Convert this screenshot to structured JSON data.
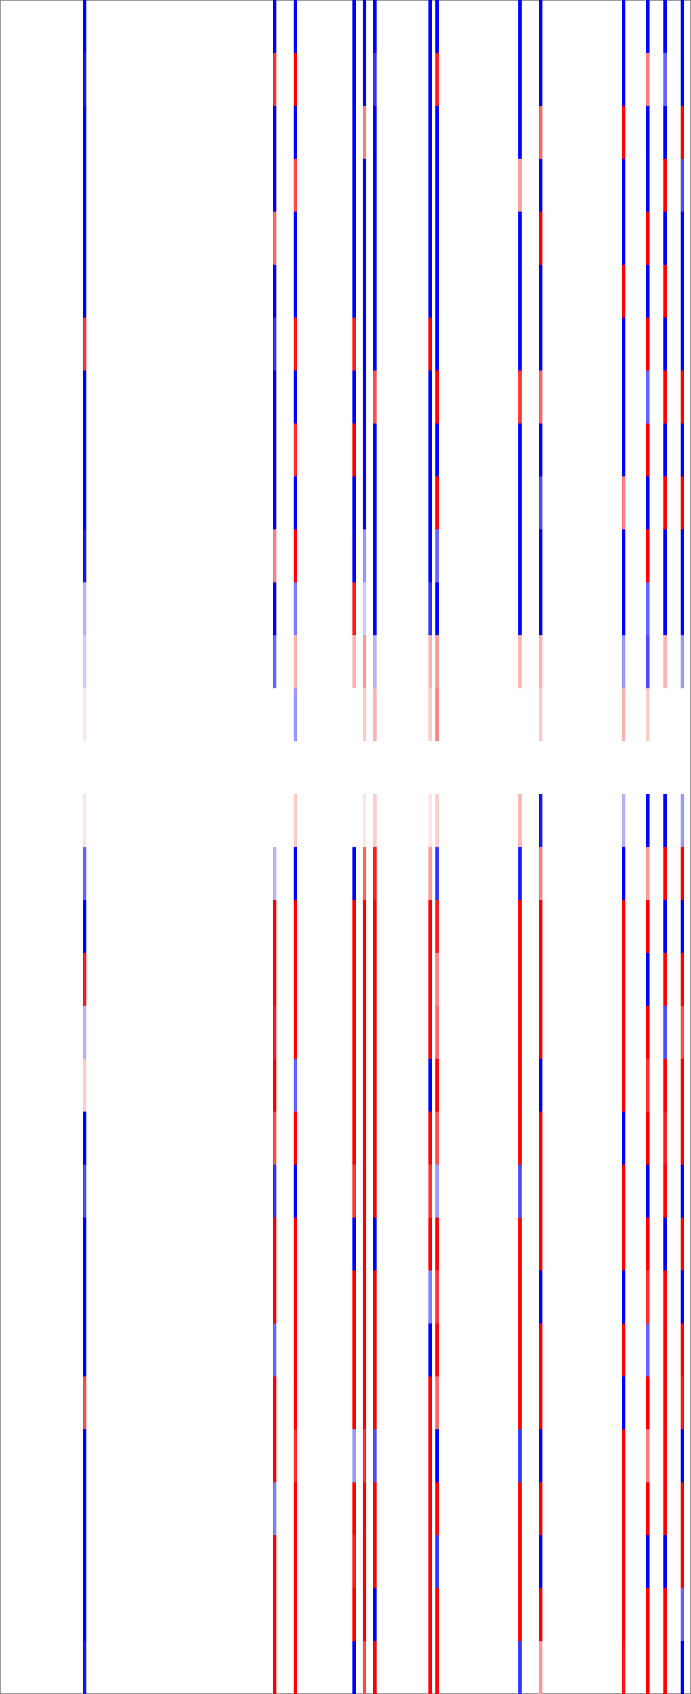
{
  "chart_data": {
    "type": "heatmap",
    "xlim": [
      0,
      200
    ],
    "vlim": [
      -1,
      1
    ],
    "colors": [
      "#0000ff",
      "#ffffff",
      "#ff0000"
    ],
    "columns": [
      {
        "x": 24,
        "values": [
          -1,
          -0.9,
          -1,
          -1,
          -1,
          -1,
          0.8,
          -1,
          -1,
          -1,
          -0.9,
          -0.3,
          -0.2,
          0.1,
          0,
          0.1,
          -0.6,
          -1,
          0.9,
          -0.3,
          0.2,
          -1,
          -0.7,
          -1,
          -1,
          -1,
          0.7,
          -1,
          -1,
          -1,
          -1,
          -0.9
        ]
      },
      {
        "x": 79,
        "values": [
          -1,
          0.8,
          -1,
          -1,
          0.6,
          -1,
          -0.8,
          -1,
          -1,
          -1,
          0.5,
          -1,
          -0.6,
          0,
          0,
          0,
          -0.3,
          1,
          1,
          0.9,
          1,
          0.7,
          -0.8,
          1,
          1,
          -0.6,
          1,
          1,
          -0.5,
          1,
          1,
          1
        ]
      },
      {
        "x": 85,
        "values": [
          -1,
          1,
          -1,
          0.7,
          -1,
          -1,
          0.9,
          -1,
          0.8,
          -1,
          1,
          -0.5,
          0.3,
          -0.4,
          0,
          0.2,
          -1,
          1,
          1,
          1,
          -0.6,
          1,
          -1,
          1,
          1,
          1,
          1,
          0.8,
          1,
          1,
          1,
          1
        ]
      },
      {
        "x": 102,
        "values": [
          -1,
          -1,
          -1,
          -1,
          -1,
          -1,
          0.9,
          -1,
          1,
          -1,
          -1,
          0.9,
          0.3,
          0,
          0,
          0,
          -1,
          1,
          1,
          1,
          1,
          1,
          0.8,
          -1,
          1,
          1,
          1,
          -0.4,
          1,
          0.9,
          1,
          -1
        ]
      },
      {
        "x": 105,
        "values": [
          -1,
          -1,
          0.5,
          -1,
          -1,
          -1,
          -1,
          -1,
          -1,
          -1,
          -0.4,
          -0.2,
          0.4,
          0.2,
          0,
          0.1,
          0.6,
          1,
          1,
          1,
          1,
          1,
          1,
          1,
          1,
          1,
          1,
          0.8,
          1,
          1,
          1,
          0.7
        ]
      },
      {
        "x": 108,
        "values": [
          -1,
          -0.8,
          -1,
          -1,
          -1,
          -1,
          -1,
          0.7,
          -1,
          -1,
          -1,
          -1,
          -0.3,
          0.3,
          0,
          0.2,
          0.9,
          1,
          1,
          1,
          1,
          1,
          1,
          -1,
          1,
          1,
          1,
          -0.7,
          1,
          1,
          -1,
          1
        ]
      },
      {
        "x": 124,
        "values": [
          -1,
          -1,
          -1,
          -1,
          -1,
          -1,
          1,
          -1,
          -1,
          -1,
          -1,
          -0.8,
          0.3,
          0.2,
          0,
          0.1,
          0.4,
          1,
          1,
          1,
          -1,
          1,
          0.8,
          1,
          -0.5,
          -1,
          1,
          1,
          1,
          1,
          1,
          1
        ]
      },
      {
        "x": 126,
        "values": [
          -1,
          0.9,
          -1,
          -1,
          -1,
          -1,
          -1,
          1,
          -1,
          1,
          -0.6,
          -1,
          0.4,
          0.5,
          0,
          0.2,
          -0.8,
          0.9,
          0.5,
          0.6,
          1,
          0.7,
          -0.4,
          1,
          0.8,
          1,
          0.6,
          -1,
          1,
          -0.8,
          1,
          1
        ]
      },
      {
        "x": 150,
        "values": [
          -1,
          -1,
          -1,
          0.4,
          -1,
          -1,
          -1,
          0.8,
          -1,
          -1,
          -1,
          -1,
          0.3,
          0,
          0,
          0.3,
          -0.9,
          1,
          1,
          1,
          1,
          1,
          -0.7,
          1,
          1,
          1,
          1,
          -0.8,
          1,
          1,
          1,
          -0.8
        ]
      },
      {
        "x": 156,
        "values": [
          -1,
          -1,
          0.6,
          -1,
          1,
          -1,
          -1,
          0.6,
          -1,
          -0.7,
          -1,
          -1,
          0.3,
          0.2,
          0,
          -0.9,
          0.5,
          1,
          1,
          1,
          -1,
          1,
          1,
          1,
          -1,
          1,
          1,
          -1,
          1,
          -1,
          1,
          0.4
        ]
      },
      {
        "x": 180,
        "values": [
          -1,
          -1,
          1,
          -1,
          -1,
          1,
          -1,
          -1,
          -1,
          0.5,
          -1,
          -1,
          -0.4,
          0.3,
          0,
          -0.3,
          -1,
          1,
          1,
          1,
          1,
          -1,
          1,
          1,
          -1,
          1,
          -1,
          1,
          1,
          1,
          1,
          0.9
        ]
      },
      {
        "x": 187,
        "values": [
          -1,
          0.5,
          -1,
          -1,
          1,
          -1,
          1,
          -0.6,
          1,
          -1,
          1,
          -0.6,
          -0.7,
          0.2,
          0,
          -1,
          0.4,
          1,
          -1,
          1,
          0.8,
          1,
          -1,
          1,
          0.8,
          -0.6,
          1,
          0.5,
          1,
          -1,
          1,
          1
        ]
      },
      {
        "x": 192,
        "values": [
          -1,
          -0.6,
          -1,
          1,
          -1,
          1,
          -1,
          1,
          -1,
          1,
          -1,
          -1,
          0.3,
          0,
          0,
          -1,
          1,
          -1,
          1,
          -0.7,
          1,
          0.9,
          1,
          -1,
          1,
          1,
          1,
          1,
          1,
          -1,
          1,
          1
        ]
      },
      {
        "x": 197,
        "values": [
          -1,
          -1,
          1,
          -0.7,
          -1,
          -1,
          -1,
          1,
          -1,
          1,
          -1,
          -1,
          -0.4,
          0,
          0,
          -0.4,
          1,
          -1,
          1,
          0.7,
          1,
          1,
          -1,
          1,
          -1,
          1,
          0.9,
          -1,
          1,
          1,
          -0.6,
          -1
        ]
      }
    ]
  }
}
